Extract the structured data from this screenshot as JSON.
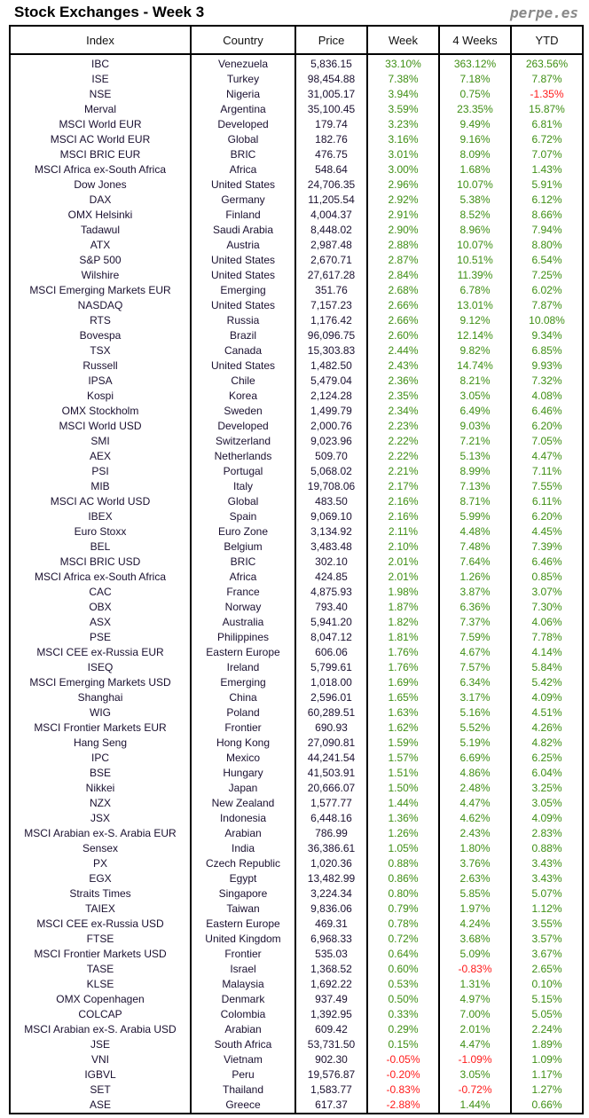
{
  "title": "Stock Exchanges - Week 3",
  "brand": "perpe.es",
  "colors": {
    "positive": "#3f8f14",
    "negative": "#ff1a1a"
  },
  "headers": [
    "Index",
    "Country",
    "Price",
    "Week",
    "4 Weeks",
    "YTD"
  ],
  "rows": [
    [
      "IBC",
      "Venezuela",
      "5,836.15",
      "33.10%",
      "363.12%",
      "263.56%"
    ],
    [
      "ISE",
      "Turkey",
      "98,454.88",
      "7.38%",
      "7.18%",
      "7.87%"
    ],
    [
      "NSE",
      "Nigeria",
      "31,005.17",
      "3.94%",
      "0.75%",
      "-1.35%"
    ],
    [
      "Merval",
      "Argentina",
      "35,100.45",
      "3.59%",
      "23.35%",
      "15.87%"
    ],
    [
      "MSCI World EUR",
      "Developed",
      "179.74",
      "3.23%",
      "9.49%",
      "6.81%"
    ],
    [
      "MSCI AC World EUR",
      "Global",
      "182.76",
      "3.16%",
      "9.16%",
      "6.72%"
    ],
    [
      "MSCI BRIC EUR",
      "BRIC",
      "476.75",
      "3.01%",
      "8.09%",
      "7.07%"
    ],
    [
      "MSCI Africa ex-South Africa",
      "Africa",
      "548.64",
      "3.00%",
      "1.68%",
      "1.43%"
    ],
    [
      "Dow Jones",
      "United States",
      "24,706.35",
      "2.96%",
      "10.07%",
      "5.91%"
    ],
    [
      "DAX",
      "Germany",
      "11,205.54",
      "2.92%",
      "5.38%",
      "6.12%"
    ],
    [
      "OMX Helsinki",
      "Finland",
      "4,004.37",
      "2.91%",
      "8.52%",
      "8.66%"
    ],
    [
      "Tadawul",
      "Saudi Arabia",
      "8,448.02",
      "2.90%",
      "8.96%",
      "7.94%"
    ],
    [
      "ATX",
      "Austria",
      "2,987.48",
      "2.88%",
      "10.07%",
      "8.80%"
    ],
    [
      "S&P 500",
      "United States",
      "2,670.71",
      "2.87%",
      "10.51%",
      "6.54%"
    ],
    [
      "Wilshire",
      "United States",
      "27,617.28",
      "2.84%",
      "11.39%",
      "7.25%"
    ],
    [
      "MSCI Emerging Markets EUR",
      "Emerging",
      "351.76",
      "2.68%",
      "6.78%",
      "6.02%"
    ],
    [
      "NASDAQ",
      "United States",
      "7,157.23",
      "2.66%",
      "13.01%",
      "7.87%"
    ],
    [
      "RTS",
      "Russia",
      "1,176.42",
      "2.66%",
      "9.12%",
      "10.08%"
    ],
    [
      "Bovespa",
      "Brazil",
      "96,096.75",
      "2.60%",
      "12.14%",
      "9.34%"
    ],
    [
      "TSX",
      "Canada",
      "15,303.83",
      "2.44%",
      "9.82%",
      "6.85%"
    ],
    [
      "Russell",
      "United States",
      "1,482.50",
      "2.43%",
      "14.74%",
      "9.93%"
    ],
    [
      "IPSA",
      "Chile",
      "5,479.04",
      "2.36%",
      "8.21%",
      "7.32%"
    ],
    [
      "Kospi",
      "Korea",
      "2,124.28",
      "2.35%",
      "3.05%",
      "4.08%"
    ],
    [
      "OMX Stockholm",
      "Sweden",
      "1,499.79",
      "2.34%",
      "6.49%",
      "6.46%"
    ],
    [
      "MSCI World USD",
      "Developed",
      "2,000.76",
      "2.23%",
      "9.03%",
      "6.20%"
    ],
    [
      "SMI",
      "Switzerland",
      "9,023.96",
      "2.22%",
      "7.21%",
      "7.05%"
    ],
    [
      "AEX",
      "Netherlands",
      "509.70",
      "2.22%",
      "5.13%",
      "4.47%"
    ],
    [
      "PSI",
      "Portugal",
      "5,068.02",
      "2.21%",
      "8.99%",
      "7.11%"
    ],
    [
      "MIB",
      "Italy",
      "19,708.06",
      "2.17%",
      "7.13%",
      "7.55%"
    ],
    [
      "MSCI AC World USD",
      "Global",
      "483.50",
      "2.16%",
      "8.71%",
      "6.11%"
    ],
    [
      "IBEX",
      "Spain",
      "9,069.10",
      "2.16%",
      "5.99%",
      "6.20%"
    ],
    [
      "Euro Stoxx",
      "Euro Zone",
      "3,134.92",
      "2.11%",
      "4.48%",
      "4.45%"
    ],
    [
      "BEL",
      "Belgium",
      "3,483.48",
      "2.10%",
      "7.48%",
      "7.39%"
    ],
    [
      "MSCI BRIC USD",
      "BRIC",
      "302.10",
      "2.01%",
      "7.64%",
      "6.46%"
    ],
    [
      "MSCI Africa ex-South Africa",
      "Africa",
      "424.85",
      "2.01%",
      "1.26%",
      "0.85%"
    ],
    [
      "CAC",
      "France",
      "4,875.93",
      "1.98%",
      "3.87%",
      "3.07%"
    ],
    [
      "OBX",
      "Norway",
      "793.40",
      "1.87%",
      "6.36%",
      "7.30%"
    ],
    [
      "ASX",
      "Australia",
      "5,941.20",
      "1.82%",
      "7.37%",
      "4.06%"
    ],
    [
      "PSE",
      "Philippines",
      "8,047.12",
      "1.81%",
      "7.59%",
      "7.78%"
    ],
    [
      "MSCI CEE ex-Russia EUR",
      "Eastern Europe",
      "606.06",
      "1.76%",
      "4.67%",
      "4.14%"
    ],
    [
      "ISEQ",
      "Ireland",
      "5,799.61",
      "1.76%",
      "7.57%",
      "5.84%"
    ],
    [
      "MSCI Emerging Markets USD",
      "Emerging",
      "1,018.00",
      "1.69%",
      "6.34%",
      "5.42%"
    ],
    [
      "Shanghai",
      "China",
      "2,596.01",
      "1.65%",
      "3.17%",
      "4.09%"
    ],
    [
      "WIG",
      "Poland",
      "60,289.51",
      "1.63%",
      "5.16%",
      "4.51%"
    ],
    [
      "MSCI Frontier Markets EUR",
      "Frontier",
      "690.93",
      "1.62%",
      "5.52%",
      "4.26%"
    ],
    [
      "Hang Seng",
      "Hong Kong",
      "27,090.81",
      "1.59%",
      "5.19%",
      "4.82%"
    ],
    [
      "IPC",
      "Mexico",
      "44,241.54",
      "1.57%",
      "6.69%",
      "6.25%"
    ],
    [
      "BSE",
      "Hungary",
      "41,503.91",
      "1.51%",
      "4.86%",
      "6.04%"
    ],
    [
      "Nikkei",
      "Japan",
      "20,666.07",
      "1.50%",
      "2.48%",
      "3.25%"
    ],
    [
      "NZX",
      "New Zealand",
      "1,577.77",
      "1.44%",
      "4.47%",
      "3.05%"
    ],
    [
      "JSX",
      "Indonesia",
      "6,448.16",
      "1.36%",
      "4.62%",
      "4.09%"
    ],
    [
      "MSCI Arabian ex-S. Arabia EUR",
      "Arabian",
      "786.99",
      "1.26%",
      "2.43%",
      "2.83%"
    ],
    [
      "Sensex",
      "India",
      "36,386.61",
      "1.05%",
      "1.80%",
      "0.88%"
    ],
    [
      "PX",
      "Czech Republic",
      "1,020.36",
      "0.88%",
      "3.76%",
      "3.43%"
    ],
    [
      "EGX",
      "Egypt",
      "13,482.99",
      "0.86%",
      "2.63%",
      "3.43%"
    ],
    [
      "Straits Times",
      "Singapore",
      "3,224.34",
      "0.80%",
      "5.85%",
      "5.07%"
    ],
    [
      "TAIEX",
      "Taiwan",
      "9,836.06",
      "0.79%",
      "1.97%",
      "1.12%"
    ],
    [
      "MSCI CEE ex-Russia USD",
      "Eastern Europe",
      "469.31",
      "0.78%",
      "4.24%",
      "3.55%"
    ],
    [
      "FTSE",
      "United Kingdom",
      "6,968.33",
      "0.72%",
      "3.68%",
      "3.57%"
    ],
    [
      "MSCI Frontier Markets USD",
      "Frontier",
      "535.03",
      "0.64%",
      "5.09%",
      "3.67%"
    ],
    [
      "TASE",
      "Israel",
      "1,368.52",
      "0.60%",
      "-0.83%",
      "2.65%"
    ],
    [
      "KLSE",
      "Malaysia",
      "1,692.22",
      "0.53%",
      "1.31%",
      "0.10%"
    ],
    [
      "OMX Copenhagen",
      "Denmark",
      "937.49",
      "0.50%",
      "4.97%",
      "5.15%"
    ],
    [
      "COLCAP",
      "Colombia",
      "1,392.95",
      "0.33%",
      "7.00%",
      "5.05%"
    ],
    [
      "MSCI Arabian ex-S. Arabia USD",
      "Arabian",
      "609.42",
      "0.29%",
      "2.01%",
      "2.24%"
    ],
    [
      "JSE",
      "South Africa",
      "53,731.50",
      "0.15%",
      "4.47%",
      "1.89%"
    ],
    [
      "VNI",
      "Vietnam",
      "902.30",
      "-0.05%",
      "-1.09%",
      "1.09%"
    ],
    [
      "IGBVL",
      "Peru",
      "19,576.87",
      "-0.20%",
      "3.05%",
      "1.17%"
    ],
    [
      "SET",
      "Thailand",
      "1,583.77",
      "-0.83%",
      "-0.72%",
      "1.27%"
    ],
    [
      "ASE",
      "Greece",
      "617.37",
      "-2.88%",
      "1.44%",
      "0.66%"
    ]
  ]
}
